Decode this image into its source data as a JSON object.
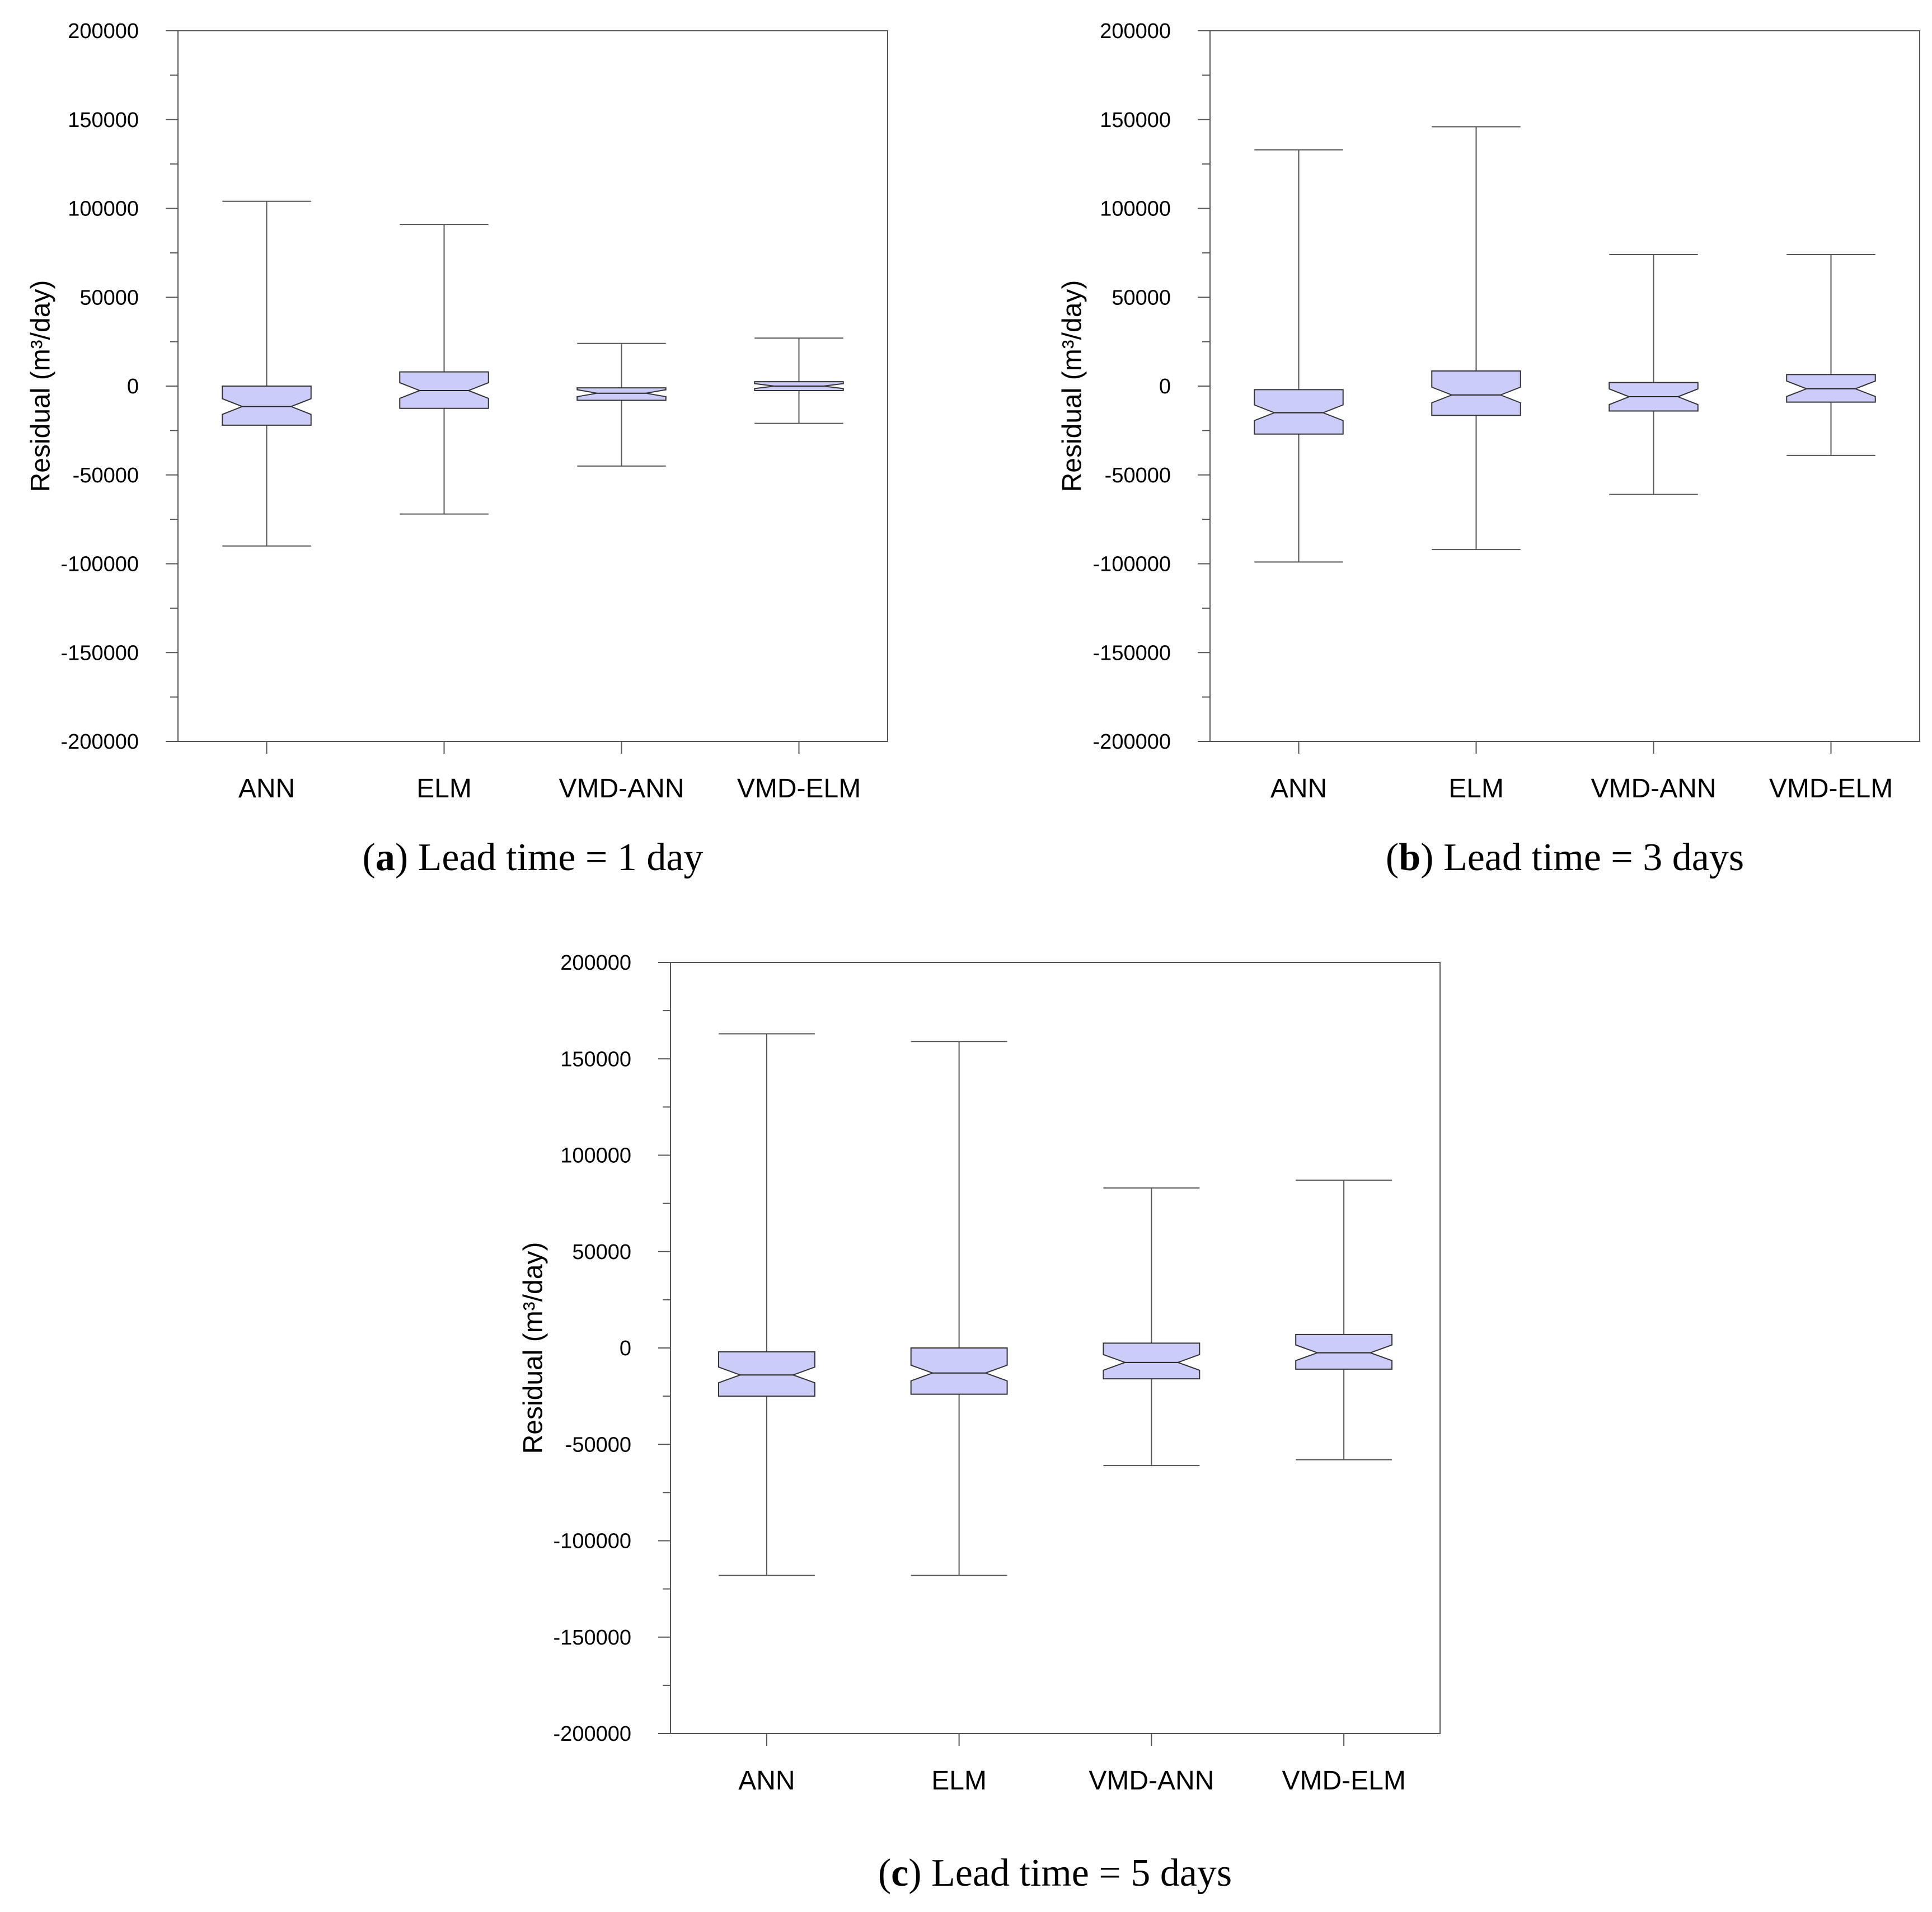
{
  "chart_data": [
    {
      "type": "boxplot",
      "panel": "a",
      "caption_letter": "a",
      "caption_text": "Lead time = 1 day",
      "ylabel": "Residual (m³/day)",
      "ylim": [
        -200000,
        200000
      ],
      "yticks": [
        200000,
        150000,
        100000,
        50000,
        0,
        -50000,
        -100000,
        -150000,
        -200000
      ],
      "categories": [
        "ANN",
        "ELM",
        "VMD-ANN",
        "VMD-ELM"
      ],
      "boxes": [
        {
          "whisker_low": -90000,
          "q1": -22000,
          "median": -11500,
          "q3": 0,
          "whisker_high": 104000
        },
        {
          "whisker_low": -72000,
          "q1": -12500,
          "median": -2500,
          "q3": 8000,
          "whisker_high": 91000
        },
        {
          "whisker_low": -45000,
          "q1": -8000,
          "median": -4000,
          "q3": -1000,
          "whisker_high": 24000
        },
        {
          "whisker_low": -21000,
          "q1": -2500,
          "median": 0,
          "q3": 2500,
          "whisker_high": 27000
        }
      ]
    },
    {
      "type": "boxplot",
      "panel": "b",
      "caption_letter": "b",
      "caption_text": "Lead time = 3 days",
      "ylabel": "Residual (m³/day)",
      "ylim": [
        -200000,
        200000
      ],
      "yticks": [
        200000,
        150000,
        100000,
        50000,
        0,
        -50000,
        -100000,
        -150000,
        -200000
      ],
      "categories": [
        "ANN",
        "ELM",
        "VMD-ANN",
        "VMD-ELM"
      ],
      "boxes": [
        {
          "whisker_low": -99000,
          "q1": -27000,
          "median": -15000,
          "q3": -2000,
          "whisker_high": 133000
        },
        {
          "whisker_low": -92000,
          "q1": -16500,
          "median": -5000,
          "q3": 8500,
          "whisker_high": 146000
        },
        {
          "whisker_low": -61000,
          "q1": -14000,
          "median": -6000,
          "q3": 2000,
          "whisker_high": 74000
        },
        {
          "whisker_low": -39000,
          "q1": -9000,
          "median": -1500,
          "q3": 6500,
          "whisker_high": 74000
        }
      ]
    },
    {
      "type": "boxplot",
      "panel": "c",
      "caption_letter": "c",
      "caption_text": "Lead time = 5 days",
      "ylabel": "Residual (m³/day)",
      "ylim": [
        -200000,
        200000
      ],
      "yticks": [
        200000,
        150000,
        100000,
        50000,
        0,
        -50000,
        -100000,
        -150000,
        -200000
      ],
      "categories": [
        "ANN",
        "ELM",
        "VMD-ANN",
        "VMD-ELM"
      ],
      "boxes": [
        {
          "whisker_low": -118000,
          "q1": -25000,
          "median": -14000,
          "q3": -2000,
          "whisker_high": 163000
        },
        {
          "whisker_low": -118000,
          "q1": -24000,
          "median": -13000,
          "q3": 0,
          "whisker_high": 159000
        },
        {
          "whisker_low": -61000,
          "q1": -16000,
          "median": -7500,
          "q3": 2500,
          "whisker_high": 83000
        },
        {
          "whisker_low": -58000,
          "q1": -11000,
          "median": -2500,
          "q3": 7000,
          "whisker_high": 87000
        }
      ]
    }
  ]
}
